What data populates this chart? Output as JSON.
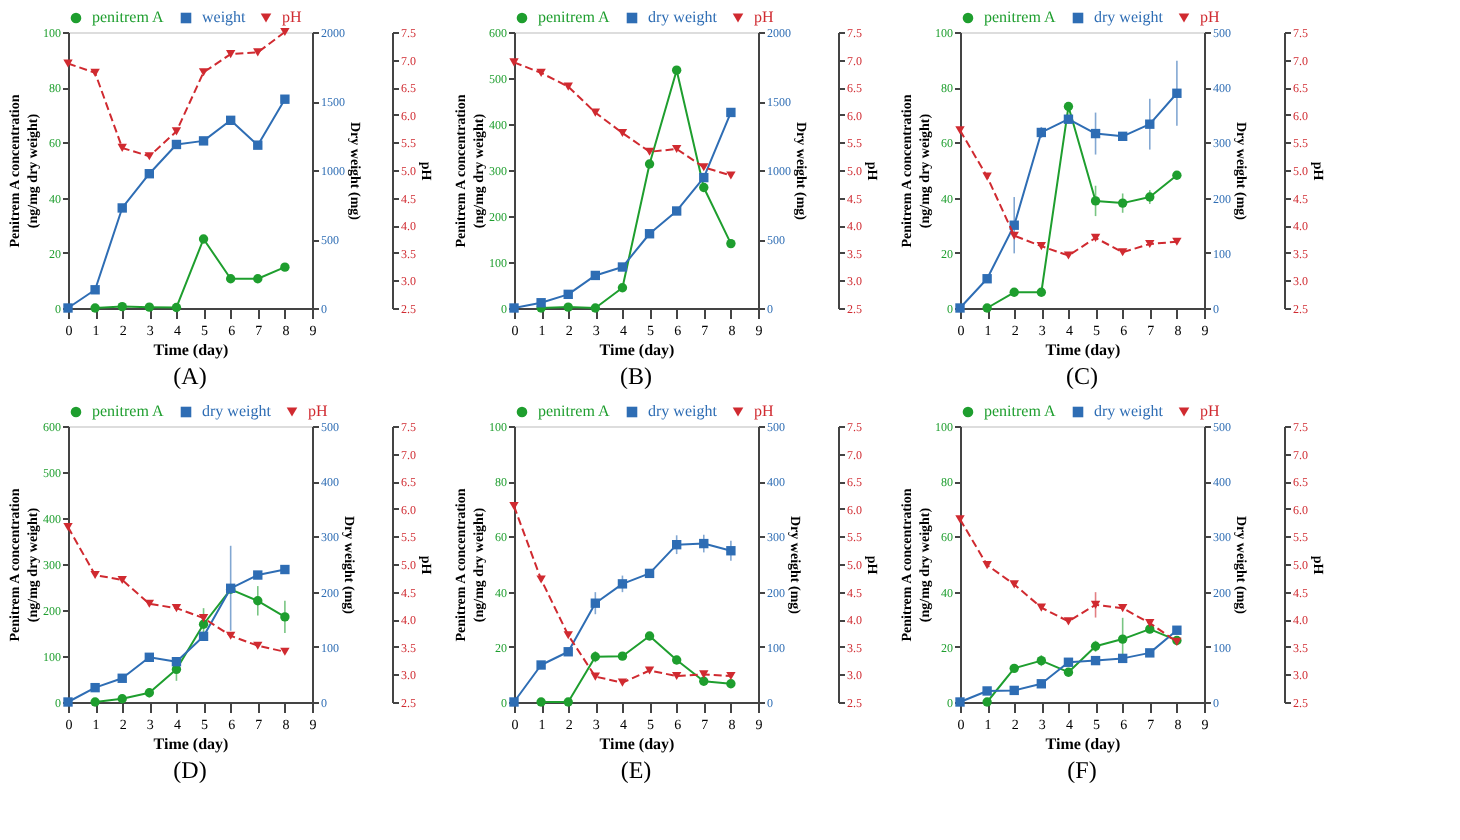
{
  "chart_data": [
    {
      "type": "line",
      "title": "(A)",
      "xlabel": "Time (day)",
      "ylabel": "Penitrem A concentration\n(ng/mg dry weight)",
      "y2label": "Dry weight (mg)",
      "y3label": "pH",
      "legend": "top",
      "x": [
        0,
        1,
        2,
        3,
        4,
        5,
        6,
        7,
        8
      ],
      "xlim": [
        0,
        9
      ],
      "xticks": [
        0,
        1,
        2,
        3,
        4,
        5,
        6,
        7,
        8,
        9
      ],
      "ylim": [
        0,
        100
      ],
      "yticks": [
        0,
        20,
        40,
        60,
        80,
        100
      ],
      "y2lim": [
        0,
        2000
      ],
      "y2ticks": [
        0,
        500,
        1000,
        1500,
        2000
      ],
      "y3lim": [
        2.5,
        7.5
      ],
      "y3ticks": [
        2.5,
        {
          "value": 3,
          "label": "3.0"
        },
        3.5,
        {
          "value": 4,
          "label": "4.0"
        },
        4.5,
        {
          "value": 5,
          "label": "5.0"
        },
        5.5,
        {
          "value": 6,
          "label": "6.0"
        },
        6.5,
        {
          "value": 7,
          "label": "7.0"
        },
        7.5
      ],
      "series": [
        {
          "name": "penitrem A",
          "color": "#1e9e2e",
          "marker": "circle",
          "line_style": "solid",
          "values": [
            null,
            0,
            0.5,
            0.3,
            0.2,
            25,
            10.6,
            10.6,
            14.8
          ]
        },
        {
          "name": "weight",
          "color": "#2e6db4",
          "marker": "square",
          "line_style": "solid",
          "axis": "y2",
          "values": [
            0,
            132,
            725,
            973,
            1185,
            1211,
            1360,
            1180,
            1513
          ]
        },
        {
          "name": "pH",
          "color": "#d02a30",
          "marker": "triangle",
          "line_style": "dashed",
          "axis": "y3",
          "values": [
            6.93,
            6.76,
            5.4,
            5.25,
            5.7,
            6.77,
            7.1,
            7.13,
            7.5
          ]
        }
      ]
    },
    {
      "type": "line",
      "title": "(B)",
      "xlabel": "Time (day)",
      "ylabel": "Penitrem A concentration\n(ng/mg dry weight)",
      "y2label": "Dry weight (mg)",
      "y3label": "pH",
      "legend": "top",
      "x": [
        0,
        1,
        2,
        3,
        4,
        5,
        6,
        7,
        8
      ],
      "xlim": [
        0,
        9
      ],
      "xticks": [
        0,
        1,
        2,
        3,
        4,
        5,
        6,
        7,
        8,
        9
      ],
      "ylim": [
        0,
        600
      ],
      "yticks": [
        0,
        100,
        200,
        300,
        400,
        500,
        600
      ],
      "y2lim": [
        0,
        2000
      ],
      "y2ticks": [
        0,
        500,
        1000,
        1500,
        2000
      ],
      "y3lim": [
        2.5,
        7.5
      ],
      "y3ticks": [
        2.5,
        {
          "value": 3,
          "label": "3.0"
        },
        3.5,
        {
          "value": 4,
          "label": "4.0"
        },
        4.5,
        {
          "value": 5,
          "label": "5.0"
        },
        5.5,
        {
          "value": 6,
          "label": "6.0"
        },
        6.5,
        {
          "value": 7,
          "label": "7.0"
        },
        7.5
      ],
      "series": [
        {
          "name": "penitrem A",
          "color": "#1e9e2e",
          "marker": "circle",
          "line_style": "solid",
          "values": [
            null,
            0,
            2,
            0,
            44,
            313,
            517,
            262,
            140
          ]
        },
        {
          "name": "dry weight",
          "color": "#2e6db4",
          "marker": "square",
          "line_style": "solid",
          "axis": "y2",
          "values": [
            0,
            38,
            99,
            236,
            297,
            538,
            703,
            945,
            1417
          ]
        },
        {
          "name": "pH",
          "color": "#d02a30",
          "marker": "triangle",
          "line_style": "dashed",
          "axis": "y3",
          "values": [
            6.95,
            6.76,
            6.51,
            6.04,
            5.67,
            5.33,
            5.38,
            5.05,
            4.9
          ]
        }
      ]
    },
    {
      "type": "line",
      "title": "(C)",
      "xlabel": "Time (day)",
      "ylabel": "Penitrem A concentration\n(ng/mg dry weight)",
      "y2label": "Dry weight (mg)",
      "y3label": "pH",
      "legend": "top",
      "x": [
        0,
        1,
        2,
        3,
        4,
        5,
        6,
        7,
        8
      ],
      "xlim": [
        0,
        9
      ],
      "xticks": [
        0,
        1,
        2,
        3,
        4,
        5,
        6,
        7,
        8,
        9
      ],
      "ylim": [
        0,
        100
      ],
      "yticks": [
        0,
        20,
        40,
        60,
        80,
        100
      ],
      "y2lim": [
        0,
        500
      ],
      "y2ticks": [
        0,
        100,
        200,
        300,
        400,
        500
      ],
      "y3lim": [
        2.5,
        7.5
      ],
      "y3ticks": [
        2.5,
        {
          "value": 3,
          "label": "3.0"
        },
        3.5,
        {
          "value": 4,
          "label": "4.0"
        },
        4.5,
        {
          "value": 5,
          "label": "5.0"
        },
        5.5,
        {
          "value": 6,
          "label": "6.0"
        },
        6.5,
        {
          "value": 7,
          "label": "7.0"
        },
        7.5
      ],
      "series": [
        {
          "name": "penitrem A",
          "color": "#1e9e2e",
          "marker": "circle",
          "line_style": "solid",
          "values": [
            null,
            0,
            5.7,
            5.7,
            73,
            38.8,
            38,
            40.2,
            48.1
          ],
          "errors": [
            null,
            null,
            null,
            null,
            null,
            5.5,
            3.5,
            2.5,
            1
          ]
        },
        {
          "name": "dry weight",
          "color": "#2e6db4",
          "marker": "square",
          "line_style": "solid",
          "axis": "y2",
          "values": [
            0,
            53,
            150,
            318,
            342,
            316,
            311,
            333,
            389
          ],
          "errors": [
            null,
            null,
            51,
            10,
            null,
            38,
            null,
            46,
            59
          ]
        },
        {
          "name": "pH",
          "color": "#d02a30",
          "marker": "triangle",
          "line_style": "dashed",
          "axis": "y3",
          "values": [
            5.72,
            4.88,
            3.81,
            3.62,
            3.45,
            3.77,
            3.51,
            3.66,
            3.7
          ]
        }
      ]
    },
    {
      "type": "line",
      "title": "(D)",
      "xlabel": "Time (day)",
      "ylabel": "Penitrem A concentration\n(ng/mg dry weight)",
      "y2label": "Dry weight (mg)",
      "y3label": "pH",
      "legend": "top",
      "x": [
        0,
        1,
        2,
        3,
        4,
        5,
        6,
        7,
        8
      ],
      "xlim": [
        0,
        9
      ],
      "xticks": [
        0,
        1,
        2,
        3,
        4,
        5,
        6,
        7,
        8,
        9
      ],
      "ylim": [
        0,
        600
      ],
      "yticks": [
        0,
        100,
        200,
        300,
        400,
        500,
        600
      ],
      "y2lim": [
        0,
        500
      ],
      "y2ticks": [
        0,
        100,
        200,
        300,
        400,
        500
      ],
      "y3lim": [
        2.5,
        7.5
      ],
      "y3ticks": [
        2.5,
        {
          "value": 3,
          "label": "3.0"
        },
        3.5,
        {
          "value": 4,
          "label": "4.0"
        },
        4.5,
        {
          "value": 5,
          "label": "5.0"
        },
        5.5,
        {
          "value": 6,
          "label": "6.0"
        },
        6.5,
        {
          "value": 7,
          "label": "7.0"
        },
        7.5
      ],
      "series": [
        {
          "name": "penitrem A",
          "color": "#1e9e2e",
          "marker": "circle",
          "line_style": "solid",
          "values": [
            null,
            0,
            7,
            20,
            71,
            169,
            245,
            220,
            185
          ],
          "errors": [
            null,
            null,
            null,
            10,
            25,
            35,
            null,
            32,
            35
          ]
        },
        {
          "name": "dry weight",
          "color": "#2e6db4",
          "marker": "square",
          "line_style": "solid",
          "axis": "y2",
          "values": [
            0,
            26,
            43,
            81,
            73,
            119,
            206,
            230,
            240
          ],
          "errors": [
            null,
            null,
            null,
            6,
            6,
            8,
            77,
            6,
            null
          ]
        },
        {
          "name": "pH",
          "color": "#d02a30",
          "marker": "triangle",
          "line_style": "dashed",
          "axis": "y3",
          "values": [
            5.67,
            4.8,
            4.71,
            4.28,
            4.2,
            4.02,
            3.7,
            3.52,
            3.41
          ]
        }
      ]
    },
    {
      "type": "line",
      "title": "(E)",
      "xlabel": "Time (day)",
      "ylabel": "Penitrem A concentration\n(ng/mg dry weight)",
      "y2label": "Dry weight (mg)",
      "y3label": "pH",
      "legend": "top",
      "x": [
        0,
        1,
        2,
        3,
        4,
        5,
        6,
        7,
        8
      ],
      "xlim": [
        0,
        9
      ],
      "xticks": [
        0,
        1,
        2,
        3,
        4,
        5,
        6,
        7,
        8,
        9
      ],
      "ylim": [
        0,
        100
      ],
      "yticks": [
        0,
        20,
        40,
        60,
        80,
        100
      ],
      "y2lim": [
        0,
        500
      ],
      "y2ticks": [
        0,
        100,
        200,
        300,
        400,
        500
      ],
      "y3lim": [
        2.5,
        7.5
      ],
      "y3ticks": [
        2.5,
        {
          "value": 3,
          "label": "3.0"
        },
        3.5,
        {
          "value": 4,
          "label": "4.0"
        },
        4.5,
        {
          "value": 5,
          "label": "5.0"
        },
        5.5,
        {
          "value": 6,
          "label": "6.0"
        },
        6.5,
        {
          "value": 7,
          "label": "7.0"
        },
        7.5
      ],
      "series": [
        {
          "name": "penitrem A",
          "color": "#1e9e2e",
          "marker": "circle",
          "line_style": "solid",
          "values": [
            null,
            0,
            0,
            16.4,
            16.6,
            23.9,
            15.2,
            7.5,
            6.6
          ],
          "errors": [
            null,
            null,
            null,
            2,
            null,
            1,
            1.5,
            null,
            null
          ]
        },
        {
          "name": "dry weight",
          "color": "#2e6db4",
          "marker": "square",
          "line_style": "solid",
          "axis": "y2",
          "values": [
            0,
            67,
            91,
            179,
            214,
            233,
            285,
            287,
            274
          ],
          "errors": [
            null,
            null,
            6,
            20,
            15,
            6,
            17,
            16,
            18
          ]
        },
        {
          "name": "pH",
          "color": "#d02a30",
          "marker": "triangle",
          "line_style": "dashed",
          "axis": "y3",
          "values": [
            6.05,
            4.72,
            3.71,
            2.96,
            2.85,
            3.07,
            2.97,
            3.0,
            2.97
          ]
        }
      ]
    },
    {
      "type": "line",
      "title": "(F)",
      "xlabel": "Time (day)",
      "ylabel": "Penitrem A concentration\n(ng/mg dry weight)",
      "y2label": "Dry weight (mg)",
      "y3label": "pH",
      "legend": "top",
      "x": [
        0,
        1,
        2,
        3,
        4,
        5,
        6,
        7,
        8
      ],
      "xlim": [
        0,
        9
      ],
      "xticks": [
        0,
        1,
        2,
        3,
        4,
        5,
        6,
        7,
        8,
        9
      ],
      "ylim": [
        0,
        100
      ],
      "yticks": [
        0,
        20,
        40,
        60,
        80,
        100
      ],
      "y2lim": [
        0,
        500
      ],
      "y2ticks": [
        0,
        100,
        200,
        300,
        400,
        500
      ],
      "y3lim": [
        2.5,
        7.5
      ],
      "y3ticks": [
        2.5,
        {
          "value": 3,
          "label": "3.0"
        },
        3.5,
        {
          "value": 4,
          "label": "4.0"
        },
        4.5,
        {
          "value": 5,
          "label": "5.0"
        },
        5.5,
        {
          "value": 6,
          "label": "6.0"
        },
        6.5,
        {
          "value": 7,
          "label": "7.0"
        },
        7.5
      ],
      "series": [
        {
          "name": "penitrem A",
          "color": "#1e9e2e",
          "marker": "circle",
          "line_style": "solid",
          "values": [
            null,
            0,
            12.2,
            15,
            10.8,
            20.2,
            22.8,
            26.4,
            22.3
          ],
          "errors": [
            null,
            null,
            null,
            2,
            null,
            2,
            7.7,
            1.5,
            null
          ]
        },
        {
          "name": "dry weight",
          "color": "#2e6db4",
          "marker": "square",
          "line_style": "solid",
          "axis": "y2",
          "values": [
            0,
            20,
            21,
            33,
            72,
            75,
            79,
            89,
            130
          ]
        },
        {
          "name": "pH",
          "color": "#d02a30",
          "marker": "triangle",
          "line_style": "dashed",
          "axis": "y3",
          "values": [
            5.81,
            4.98,
            4.63,
            4.21,
            3.96,
            4.26,
            4.2,
            3.93,
            3.59
          ],
          "errors": [
            null,
            null,
            null,
            null,
            null,
            0.23,
            null,
            null,
            null
          ]
        }
      ]
    }
  ]
}
